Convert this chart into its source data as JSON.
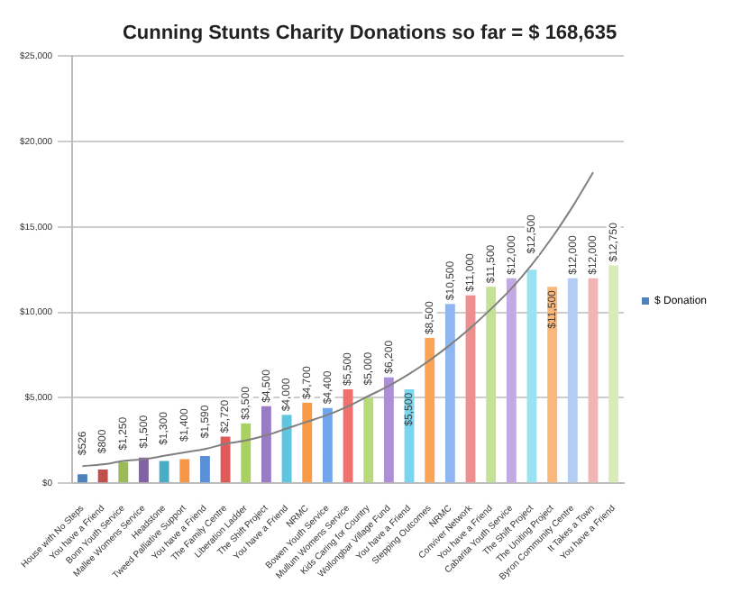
{
  "chart_data": {
    "type": "bar",
    "title": "Cunning Stunts Charity Donations so far = $ 168,635",
    "categories": [
      "House with No Steps",
      "You have a Friend",
      "Bonn Youth Service",
      "Mallee Womens Service",
      "Headstone",
      "Tweed Palliative Support",
      "You have a Friend",
      "The Family Centre",
      "Liberation Ladder",
      "The Shift Project",
      "You have a Friend",
      "NRMC",
      "Bowen Youth Service",
      "Mullum Womens Service",
      "Kids Caring for Country",
      "Wollongbar Village Fund",
      "You have a Friend",
      "Stepping Outcomes",
      "NRMC",
      "Conviver Network",
      "You have a Friend",
      "Cabarita Youth Service",
      "The Shift Project",
      "The Uniting Project",
      "Byron Community Centre",
      "It Takes a Town",
      "You have a Friend"
    ],
    "series": [
      {
        "name": "$ Donation",
        "color": "#4f81bd",
        "values": [
          526,
          800,
          1250,
          1500,
          1300,
          1400,
          1590,
          2720,
          3500,
          4500,
          4000,
          4700,
          4400,
          5500,
          5000,
          6200,
          5500,
          8500,
          10500,
          11000,
          11500,
          12000,
          12500,
          11500,
          12000,
          12000,
          12750
        ],
        "colors": [
          "#4f81bd",
          "#c0504d",
          "#9bbb59",
          "#8064a2",
          "#4bacc6",
          "#f79646",
          "#5b8fd6",
          "#e05a5a",
          "#a9d161",
          "#9a7cc4",
          "#5fc6e0",
          "#fb9a45",
          "#72a6ec",
          "#f07070",
          "#b8da7a",
          "#ad8fd6",
          "#79d6ee",
          "#fca356",
          "#8fb6ee",
          "#ee8f8f",
          "#c4e296",
          "#c2abe2",
          "#98e2f2",
          "#fcb77a",
          "#b3ccf2",
          "#f2b5b5",
          "#d8ecb8"
        ],
        "value_labels": [
          "$526",
          "$800",
          "$1,250",
          "$1,500",
          "$1,300",
          "$1,400",
          "$1,590",
          "$2,720",
          "$3,500",
          "$4,500",
          "$4,000",
          "$4,700",
          "$4,400",
          "$5,500",
          "$5,000",
          "$6,200",
          "$5,500",
          "$8,500",
          "$10,500",
          "$11,000",
          "$11,500",
          "$12,000",
          "$12,500",
          "$11,500",
          "$12,000",
          "$12,000",
          "$12,750"
        ]
      },
      {
        "type": "line",
        "color": "#808080",
        "values": [
          1000,
          1100,
          1300,
          1400,
          1600,
          1800,
          2000,
          2300,
          2500,
          2800,
          3200,
          3600,
          4000,
          4500,
          5100,
          5700,
          6400,
          7200,
          8100,
          9100,
          10200,
          11400,
          12800,
          14400,
          16200,
          18200,
          null
        ]
      }
    ],
    "ylim": [
      0,
      25000
    ],
    "yticks": [
      {
        "value": 0,
        "label": "$0"
      },
      {
        "value": 5000,
        "label": "$5,000"
      },
      {
        "value": 10000,
        "label": "$10,000"
      },
      {
        "value": 15000,
        "label": "$15,000"
      },
      {
        "value": 20000,
        "label": "$20,000"
      },
      {
        "value": 25000,
        "label": "$25,000"
      }
    ],
    "grid": "y",
    "legend": "right"
  }
}
